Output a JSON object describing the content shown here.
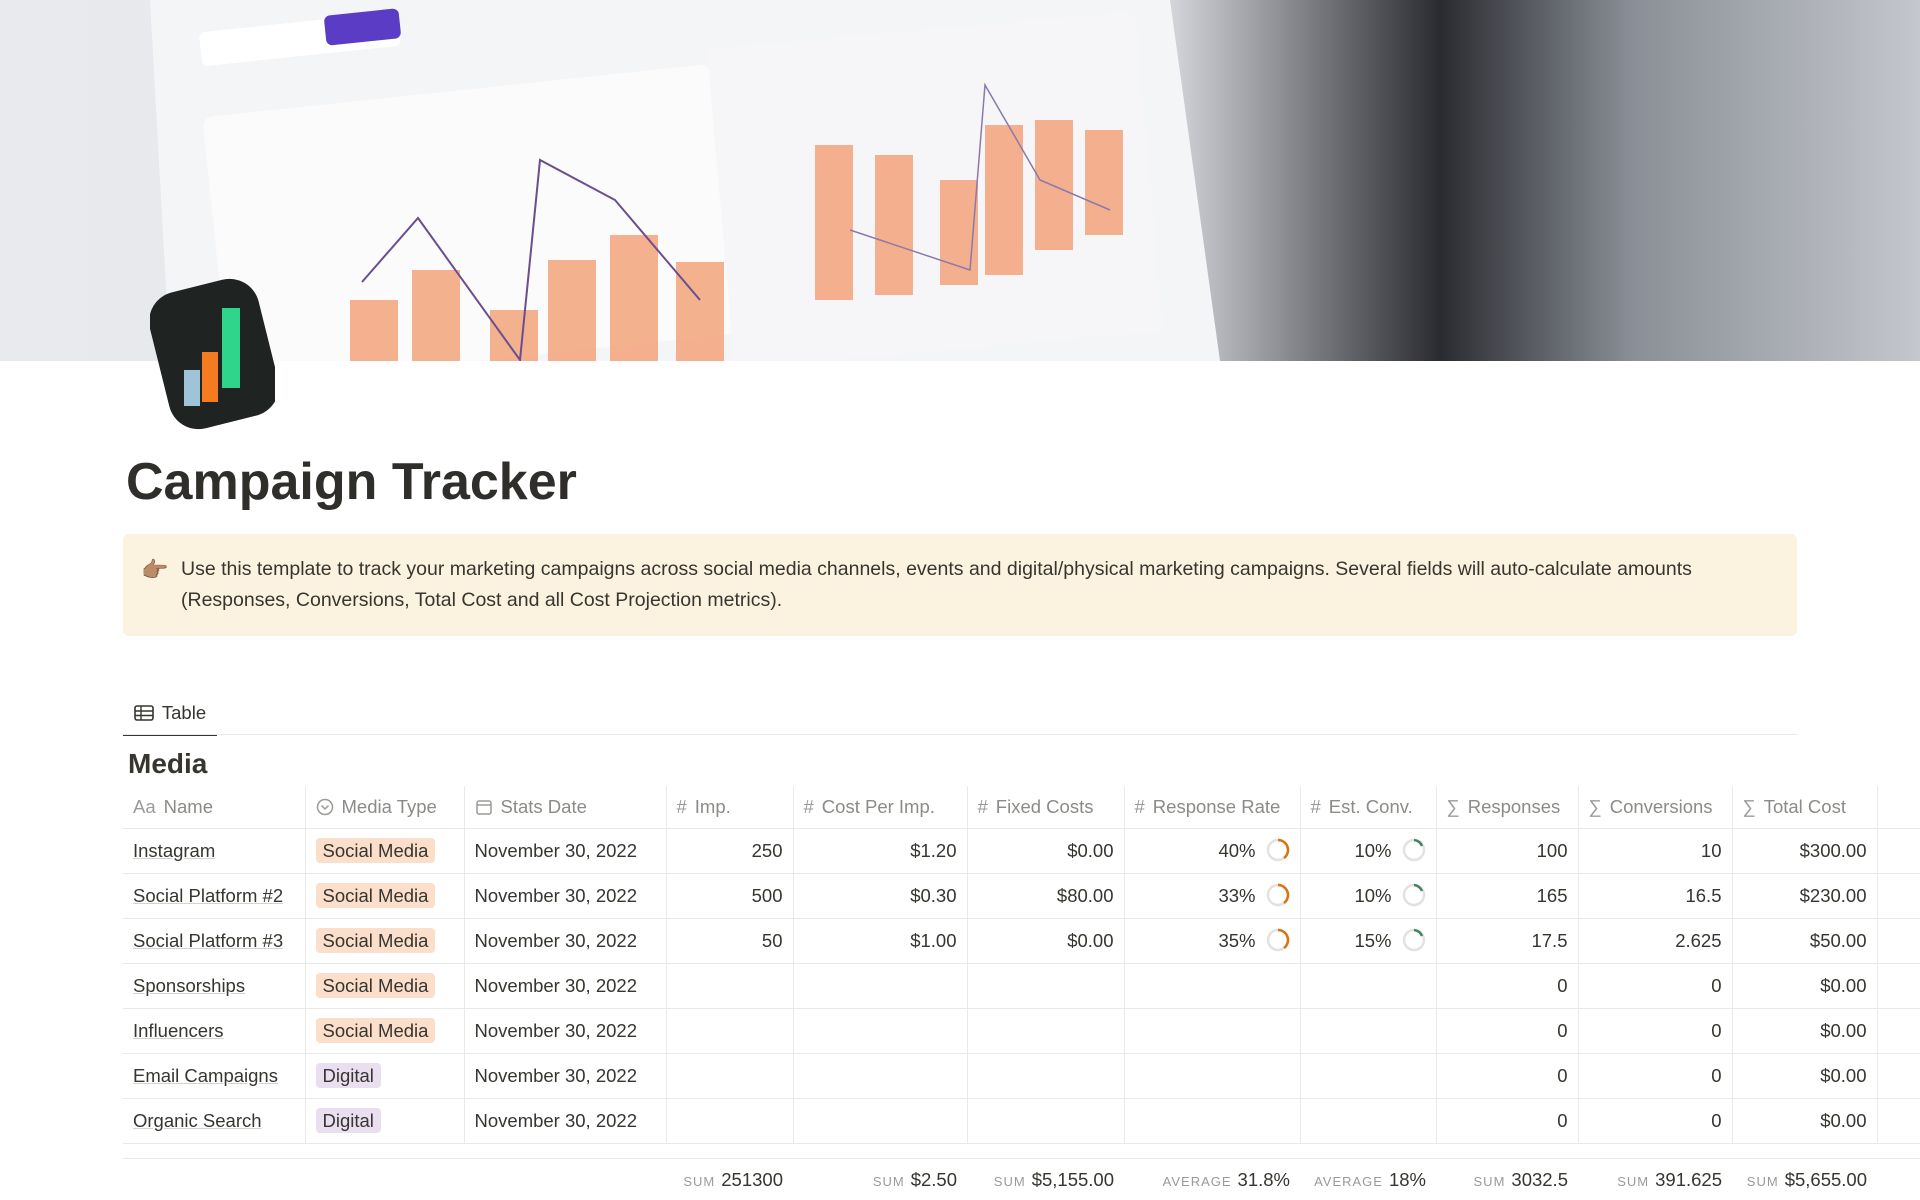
{
  "page": {
    "title": "Campaign Tracker",
    "callout": {
      "icon": "👉🏽",
      "text": "Use this template to track your marketing campaigns across social media channels, events and digital/physical marketing campaigns. Several fields will auto-calculate amounts (Responses, Conversions, Total Cost and all Cost Projection metrics)."
    },
    "view_tab": "Table",
    "database": {
      "title": "Media",
      "columns": [
        {
          "icon": "Aa",
          "name": "Name"
        },
        {
          "name": "Media Type"
        },
        {
          "name": "Stats Date"
        },
        {
          "icon": "#",
          "name": "Imp."
        },
        {
          "icon": "#",
          "name": "Cost Per Imp."
        },
        {
          "icon": "#",
          "name": "Fixed Costs"
        },
        {
          "icon": "#",
          "name": "Response Rate"
        },
        {
          "icon": "#",
          "name": "Est. Conv."
        },
        {
          "icon": "∑",
          "name": "Responses"
        },
        {
          "icon": "∑",
          "name": "Conversions"
        },
        {
          "icon": "∑",
          "name": "Total Cost"
        }
      ],
      "rows": [
        [
          "Instagram",
          {
            "text": "Social Media",
            "color": "#fbdfcb"
          },
          "November 30, 2022",
          "250",
          "$1.20",
          "$0.00",
          "40%",
          "10%",
          "100",
          "10",
          "$300.00"
        ],
        [
          "Social Platform #2",
          {
            "text": "Social Media",
            "color": "#fbdfcb"
          },
          "November 30, 2022",
          "500",
          "$0.30",
          "$80.00",
          "33%",
          "10%",
          "165",
          "16.5",
          "$230.00"
        ],
        [
          "Social Platform #3",
          {
            "text": "Social Media",
            "color": "#fbdfcb"
          },
          "November 30, 2022",
          "50",
          "$1.00",
          "$0.00",
          "35%",
          "15%",
          "17.5",
          "2.625",
          "$50.00"
        ],
        [
          "Sponsorships",
          {
            "text": "Social Media",
            "color": "#fbdfcb"
          },
          "November 30, 2022",
          null,
          null,
          null,
          null,
          null,
          "0",
          "0",
          "$0.00"
        ],
        [
          "Influencers",
          {
            "text": "Social Media",
            "color": "#fbdfcb"
          },
          "November 30, 2022",
          null,
          null,
          null,
          null,
          null,
          "0",
          "0",
          "$0.00"
        ],
        [
          "Email Campaigns",
          {
            "text": "Digital",
            "color": "#eadff1"
          },
          "November 30, 2022",
          null,
          null,
          null,
          null,
          null,
          "0",
          "0",
          "$0.00"
        ],
        [
          "Organic Search",
          {
            "text": "Digital",
            "color": "#eadff1"
          },
          "November 30, 2022",
          null,
          null,
          null,
          null,
          null,
          "0",
          "0",
          "$0.00"
        ]
      ],
      "footer": [
        null,
        null,
        null,
        {
          "label": "SUM",
          "value": "251300"
        },
        {
          "label": "SUM",
          "value": "$2.50"
        },
        {
          "label": "SUM",
          "value": "$5,155.00"
        },
        {
          "label": "AVERAGE",
          "value": "31.8%"
        },
        {
          "label": "AVERAGE",
          "value": "18%"
        },
        {
          "label": "SUM",
          "value": "3032.5"
        },
        {
          "label": "SUM",
          "value": "391.625"
        },
        {
          "label": "SUM",
          "value": "$5,655.00"
        }
      ]
    }
  }
}
